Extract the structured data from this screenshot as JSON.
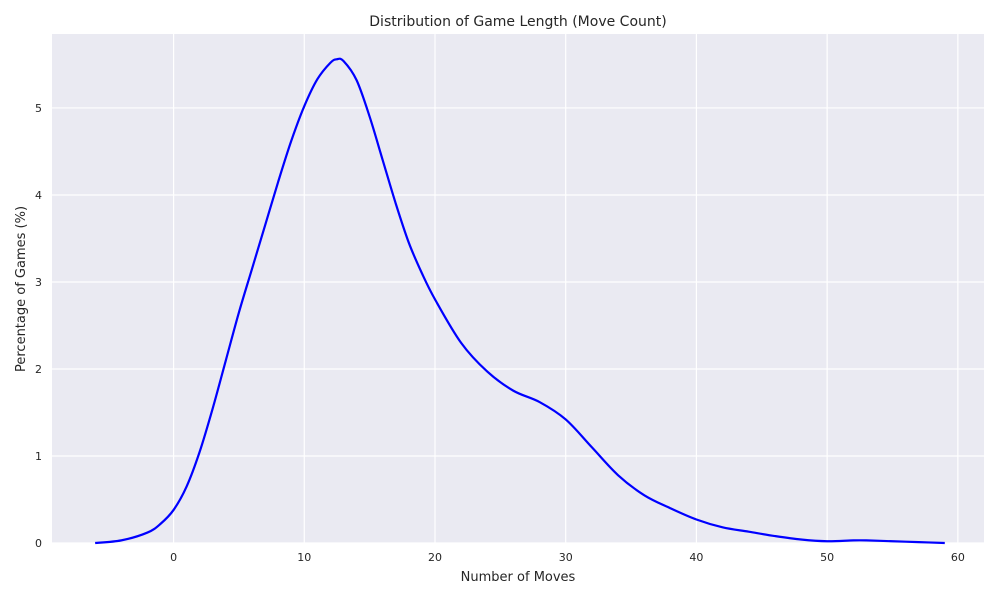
{
  "chart_data": {
    "type": "line",
    "title": "Distribution of Game Length (Move Count)",
    "xlabel": "Number of Moves",
    "ylabel": "Percentage of Games (%)",
    "xlim": [
      -9.3,
      62.0
    ],
    "ylim": [
      0,
      5.85
    ],
    "xticks": [
      0,
      10,
      20,
      30,
      40,
      50,
      60
    ],
    "yticks": [
      0,
      1,
      2,
      3,
      4,
      5
    ],
    "grid": true,
    "background_color": "#EAEAF2",
    "grid_color": "#FFFFFF",
    "series": [
      {
        "color": "#0000FF",
        "x": [
          -6,
          -4,
          -2,
          -1,
          0,
          1,
          2,
          3,
          4,
          5,
          6,
          7,
          8,
          9,
          10,
          11,
          12,
          12.5,
          13,
          14,
          15,
          16,
          17,
          18,
          19,
          20,
          22,
          24,
          26,
          28,
          30,
          32,
          34,
          36,
          38,
          40,
          42,
          44,
          46,
          48,
          50,
          52,
          53,
          55,
          57,
          59
        ],
        "y": [
          0.0,
          0.03,
          0.12,
          0.22,
          0.38,
          0.65,
          1.05,
          1.55,
          2.1,
          2.65,
          3.15,
          3.65,
          4.15,
          4.62,
          5.02,
          5.33,
          5.52,
          5.56,
          5.54,
          5.32,
          4.9,
          4.4,
          3.9,
          3.45,
          3.1,
          2.8,
          2.3,
          1.97,
          1.75,
          1.62,
          1.42,
          1.1,
          0.78,
          0.55,
          0.4,
          0.27,
          0.18,
          0.13,
          0.08,
          0.04,
          0.02,
          0.03,
          0.03,
          0.02,
          0.01,
          0.0
        ]
      }
    ]
  }
}
